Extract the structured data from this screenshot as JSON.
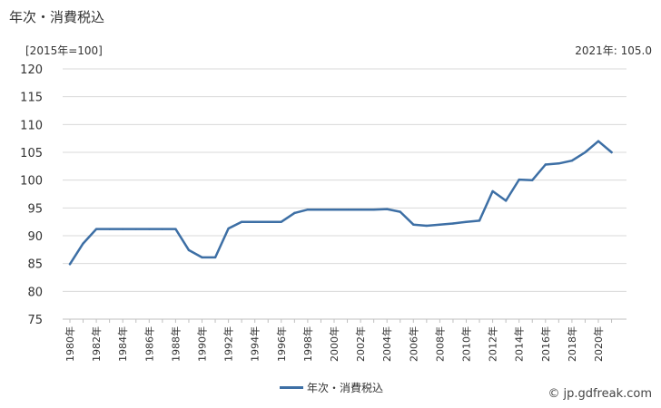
{
  "header": {
    "title": "年次・消費税込",
    "unit": "[2015年=100]",
    "latest": "2021年: 105.0"
  },
  "footer": {
    "credit_icon": "©",
    "credit": "jp.gdfreak.com"
  },
  "colors": {
    "series": "#3d6fa5",
    "grid": "#d9d9d9",
    "text": "#333333"
  },
  "chart_data": {
    "type": "line",
    "title": "",
    "xlabel": "",
    "ylabel": "",
    "ylim": [
      75,
      120
    ],
    "yticks": [
      75,
      80,
      85,
      90,
      95,
      100,
      105,
      110,
      115,
      120
    ],
    "xtick_labels": [
      "1980年",
      "1982年",
      "1984年",
      "1986年",
      "1988年",
      "1990年",
      "1992年",
      "1994年",
      "1996年",
      "1998年",
      "2000年",
      "2002年",
      "2004年",
      "2006年",
      "2008年",
      "2010年",
      "2012年",
      "2014年",
      "2016年",
      "2018年",
      "2020年"
    ],
    "grid": true,
    "legend_position": "bottom",
    "series": [
      {
        "name": "年次・消費税込",
        "x": [
          1980,
          1981,
          1982,
          1983,
          1984,
          1985,
          1986,
          1987,
          1988,
          1989,
          1990,
          1991,
          1992,
          1993,
          1994,
          1995,
          1996,
          1997,
          1998,
          1999,
          2000,
          2001,
          2002,
          2003,
          2004,
          2005,
          2006,
          2007,
          2008,
          2009,
          2010,
          2011,
          2012,
          2013,
          2014,
          2015,
          2016,
          2017,
          2018,
          2019,
          2020,
          2021
        ],
        "values": [
          84.9,
          88.6,
          91.2,
          91.2,
          91.2,
          91.2,
          91.2,
          91.2,
          91.2,
          87.4,
          86.1,
          86.1,
          91.3,
          92.5,
          92.5,
          92.5,
          92.5,
          94.1,
          94.7,
          94.7,
          94.7,
          94.7,
          94.7,
          94.7,
          94.8,
          94.3,
          92.0,
          91.8,
          92.0,
          92.2,
          92.5,
          92.7,
          98.0,
          96.3,
          100.1,
          100.0,
          102.8,
          103.0,
          103.5,
          105.0,
          107.0,
          105.0
        ]
      }
    ]
  }
}
